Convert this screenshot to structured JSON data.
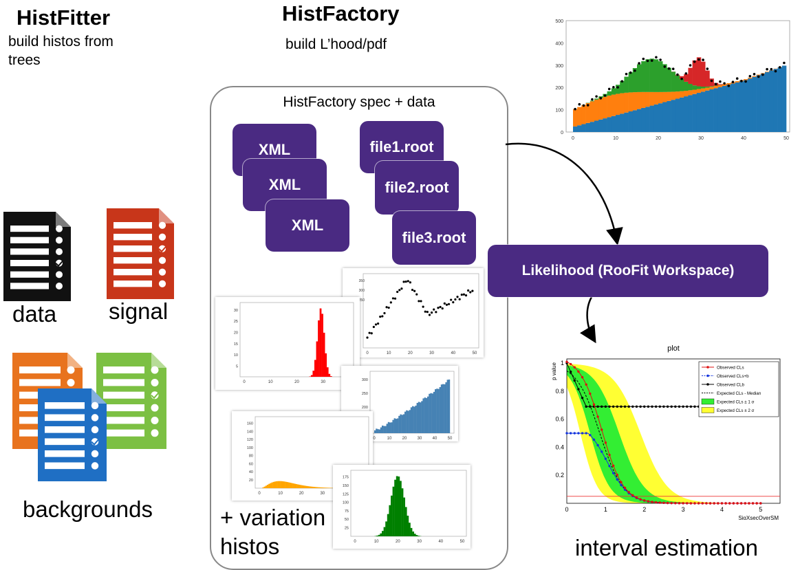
{
  "histfitter": {
    "title": "HistFitter",
    "subtitle": "build histos from trees"
  },
  "histfactory": {
    "title": "HistFactory",
    "subtitle": "build L’hood/pdf"
  },
  "inputs": {
    "data": "data",
    "signal": "signal",
    "backgrounds": "backgrounds"
  },
  "spec": {
    "title": "HistFactory spec + data",
    "xml": [
      "XML",
      "XML",
      "XML"
    ],
    "files": [
      "file1.root",
      "file2.root",
      "file3.root"
    ],
    "variation": "+ variation histos"
  },
  "likelihood": {
    "label": "Likelihood (RooFit Workspace)"
  },
  "interval": {
    "label": "interval estimation"
  },
  "colors": {
    "box": "#4a2a82",
    "doc_black": "#111111",
    "doc_red": "#c8361a",
    "doc_orange": "#e8731e",
    "doc_green": "#7cc043",
    "doc_blue": "#1f6fc4"
  },
  "chart_data": [
    {
      "type": "bar",
      "id": "stacked-fit",
      "x_ticks": [
        "0",
        "10",
        "20",
        "30",
        "40",
        "50"
      ],
      "y_ticks": [
        "0",
        "100",
        "200",
        "300",
        "400",
        "500"
      ],
      "xlim": [
        0,
        50
      ],
      "ylim": [
        0,
        500
      ],
      "series": [
        {
          "color": "#1f77b4"
        },
        {
          "color": "#ff7f0e"
        },
        {
          "color": "#2ca02c"
        },
        {
          "color": "#d62728"
        }
      ]
    },
    {
      "type": "scatter",
      "id": "data-points",
      "x_ticks": [
        "0",
        "10",
        "20",
        "30",
        "40",
        "50"
      ],
      "y_ticks": [
        "250",
        "300",
        "350"
      ]
    },
    {
      "type": "bar",
      "id": "red-hist",
      "x_ticks": [
        "0",
        "10",
        "20",
        "30",
        "40"
      ],
      "y_ticks": [
        "5",
        "10",
        "15",
        "20",
        "25",
        "30"
      ],
      "color": "#ff0000"
    },
    {
      "type": "bar",
      "id": "blue-hist",
      "x_ticks": [
        "0",
        "10",
        "20",
        "30",
        "40",
        "50"
      ],
      "y_ticks": [
        "150",
        "200",
        "250",
        "300"
      ],
      "color": "#4682b4"
    },
    {
      "type": "bar",
      "id": "orange-hist",
      "x_ticks": [
        "0",
        "10",
        "20",
        "30",
        "40",
        "50"
      ],
      "y_ticks": [
        "20",
        "40",
        "60",
        "80",
        "100",
        "120",
        "140",
        "160"
      ],
      "color": "#ffa500"
    },
    {
      "type": "bar",
      "id": "green-hist",
      "x_ticks": [
        "0",
        "10",
        "20",
        "30",
        "40",
        "50"
      ],
      "y_ticks": [
        "25",
        "50",
        "75",
        "100",
        "125",
        "150",
        "175"
      ],
      "color": "#008000"
    },
    {
      "type": "line",
      "id": "cls-plot",
      "title": "plot",
      "xlabel": "SigXsecOverSM",
      "ylabel": "p value",
      "x_ticks": [
        "0",
        "1",
        "2",
        "3",
        "4",
        "5"
      ],
      "y_ticks": [
        "0.2",
        "0.4",
        "0.6",
        "0.8",
        "1"
      ],
      "legend": [
        "Observed CLs",
        "Observed CLs+b",
        "Observed CLb",
        "Expected CLs - Median",
        "Expected CLs ± 1 σ",
        "Expected CLs ± 2 σ"
      ]
    }
  ]
}
